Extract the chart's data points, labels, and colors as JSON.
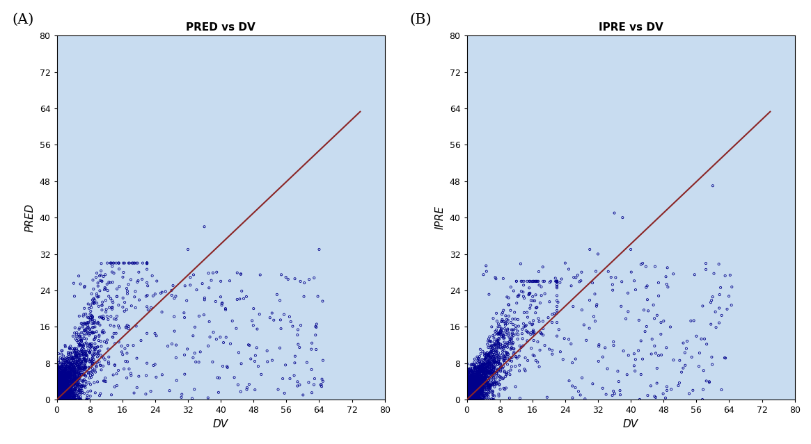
{
  "plot_A_title": "PRED vs DV",
  "plot_B_title": "IPRE vs DV",
  "xlabel": "DV",
  "ylabel_A": "PRED",
  "ylabel_B": "IPRE",
  "label_A": "(A)",
  "label_B": "(B)",
  "xlim": [
    0,
    80
  ],
  "ylim": [
    0,
    80
  ],
  "xticks": [
    0,
    8,
    16,
    24,
    32,
    40,
    48,
    56,
    64,
    72,
    80
  ],
  "yticks": [
    0,
    8,
    16,
    24,
    32,
    40,
    48,
    56,
    64,
    72,
    80
  ],
  "scatter_color": "#00008B",
  "line_color": "#8B2525",
  "background_color": "#C8DCF0",
  "dot_size": 5,
  "dot_linewidth": 0.6,
  "line_slope": 0.855,
  "line_intercept": 0.0,
  "seed_A": 42,
  "seed_B": 99,
  "n_main": 2500,
  "n_sparse": 250
}
